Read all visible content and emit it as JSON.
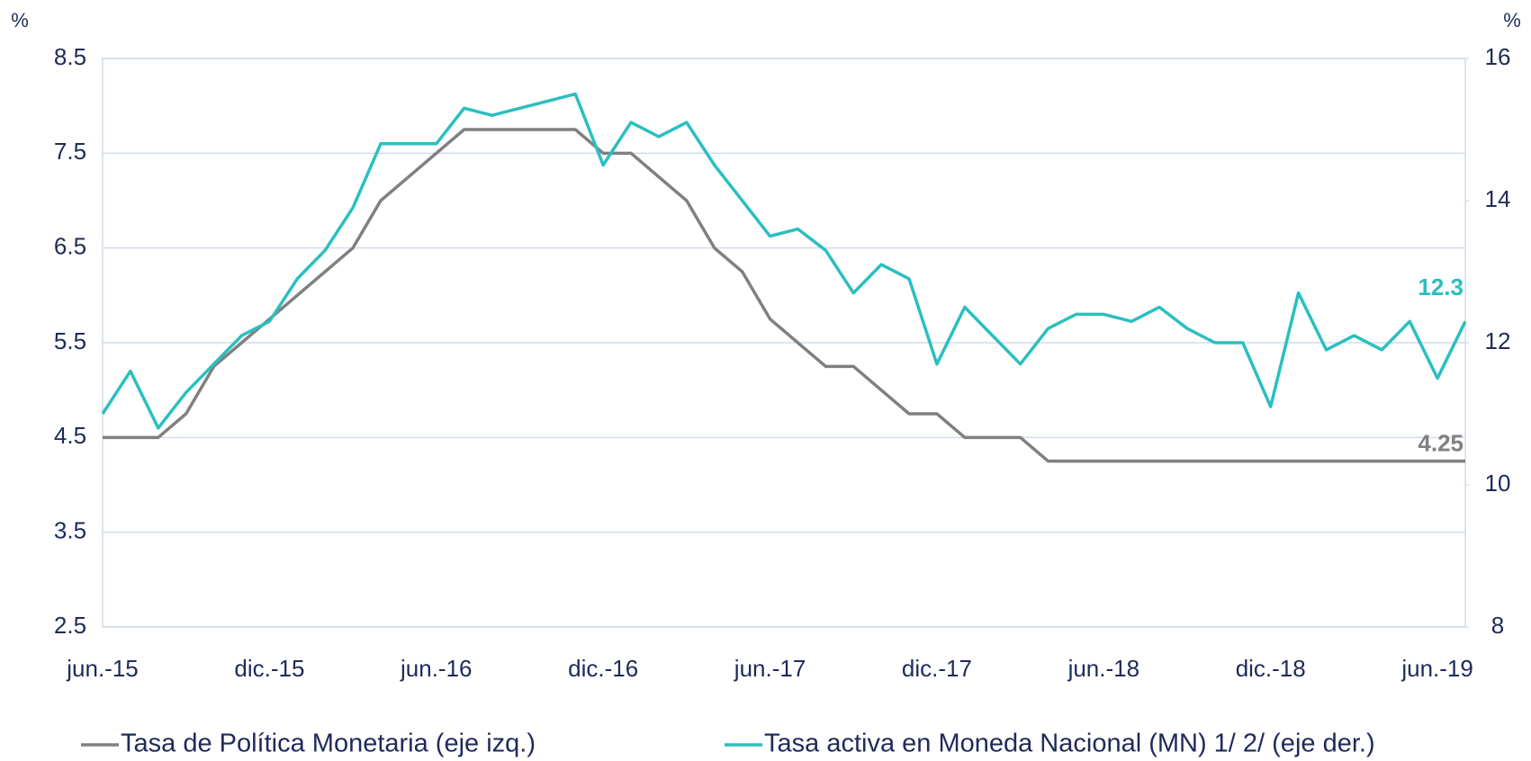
{
  "chart_data": {
    "type": "line",
    "y_unit": "%",
    "y2_unit": "%",
    "categories": [
      "jun.-15",
      null,
      null,
      null,
      null,
      null,
      "dic.-15",
      null,
      null,
      null,
      null,
      null,
      "jun.-16",
      null,
      null,
      null,
      null,
      null,
      "dic.-16",
      null,
      null,
      null,
      null,
      null,
      "jun.-17",
      null,
      null,
      null,
      null,
      null,
      "dic.-17",
      null,
      null,
      null,
      null,
      null,
      "jun.-18",
      null,
      null,
      null,
      null,
      null,
      "dic.-18",
      null,
      null,
      null,
      null,
      null,
      "jun.-19",
      null
    ],
    "series": [
      {
        "name": "Tasa de Política Monetaria (eje izq.)",
        "color": "#808080",
        "axis": "y",
        "values": [
          4.5,
          4.5,
          4.5,
          4.75,
          5.25,
          5.5,
          5.75,
          6.0,
          6.25,
          6.5,
          7.0,
          7.25,
          7.5,
          7.75,
          7.75,
          7.75,
          7.75,
          7.75,
          7.5,
          7.5,
          7.25,
          7.0,
          6.5,
          6.25,
          5.75,
          5.5,
          5.25,
          5.25,
          5.0,
          4.75,
          4.75,
          4.5,
          4.5,
          4.5,
          4.25,
          4.25,
          4.25,
          4.25,
          4.25,
          4.25,
          4.25,
          4.25,
          4.25,
          4.25,
          4.25,
          4.25,
          4.25,
          4.25,
          4.25,
          4.25
        ]
      },
      {
        "name": "Tasa activa en Moneda Nacional (MN) 1/ 2/ (eje der.)",
        "color": "#2bbfbf",
        "axis": "y2",
        "values": [
          11.0,
          11.6,
          10.8,
          11.3,
          11.7,
          12.1,
          12.3,
          12.9,
          13.3,
          13.9,
          14.8,
          14.8,
          14.8,
          15.3,
          15.2,
          15.3,
          15.4,
          15.5,
          14.5,
          15.1,
          14.9,
          15.1,
          14.5,
          14.0,
          13.5,
          13.6,
          13.3,
          12.7,
          13.1,
          12.9,
          11.7,
          12.5,
          12.1,
          11.7,
          12.2,
          12.4,
          12.4,
          12.3,
          12.5,
          12.2,
          12.0,
          12.0,
          11.1,
          12.7,
          11.9,
          12.1,
          11.9,
          12.3,
          11.5,
          12.3
        ]
      }
    ],
    "label_last": true,
    "ylim": [
      2.5,
      8.5
    ],
    "yticks": [
      2.5,
      3.5,
      4.5,
      5.5,
      6.5,
      7.5,
      8.5
    ],
    "y2lim": [
      8,
      16
    ],
    "y2ticks": [
      8,
      10,
      12,
      14,
      16
    ],
    "grid": true,
    "legend": "bottom"
  }
}
